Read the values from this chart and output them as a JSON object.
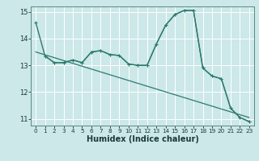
{
  "xlabel": "Humidex (Indice chaleur)",
  "background_color": "#cce8e8",
  "grid_color": "#ffffff",
  "line_color": "#2d7b6e",
  "xlim": [
    -0.5,
    23.5
  ],
  "ylim": [
    10.75,
    15.2
  ],
  "yticks": [
    11,
    12,
    13,
    14,
    15
  ],
  "xticks": [
    0,
    1,
    2,
    3,
    4,
    5,
    6,
    7,
    8,
    9,
    10,
    11,
    12,
    13,
    14,
    15,
    16,
    17,
    18,
    19,
    20,
    21,
    22,
    23
  ],
  "line1_x": [
    0,
    1,
    2,
    3,
    4,
    5,
    6,
    7,
    8,
    9,
    10,
    11,
    12,
    13,
    14,
    15,
    16,
    17,
    18,
    19,
    20,
    21,
    22,
    23
  ],
  "line1_y": [
    14.6,
    13.35,
    13.1,
    13.1,
    13.2,
    13.1,
    13.5,
    13.55,
    13.4,
    13.37,
    13.05,
    13.0,
    13.0,
    13.8,
    14.5,
    14.9,
    15.05,
    15.05,
    12.9,
    12.6,
    12.5,
    11.4,
    11.05,
    10.9
  ],
  "line2_x": [
    1,
    2,
    3,
    4,
    5,
    6,
    7,
    8,
    9,
    10,
    11,
    12,
    13,
    14,
    15,
    16,
    17,
    18,
    19,
    20,
    21,
    22,
    23
  ],
  "line2_y": [
    13.35,
    13.1,
    13.1,
    13.2,
    13.1,
    13.5,
    13.55,
    13.4,
    13.37,
    13.05,
    13.0,
    13.0,
    13.8,
    14.5,
    14.9,
    15.05,
    15.05,
    12.9,
    12.6,
    12.5,
    11.4,
    11.05,
    10.9
  ],
  "line3_x": [
    0,
    23
  ],
  "line3_y": [
    13.5,
    11.05
  ]
}
